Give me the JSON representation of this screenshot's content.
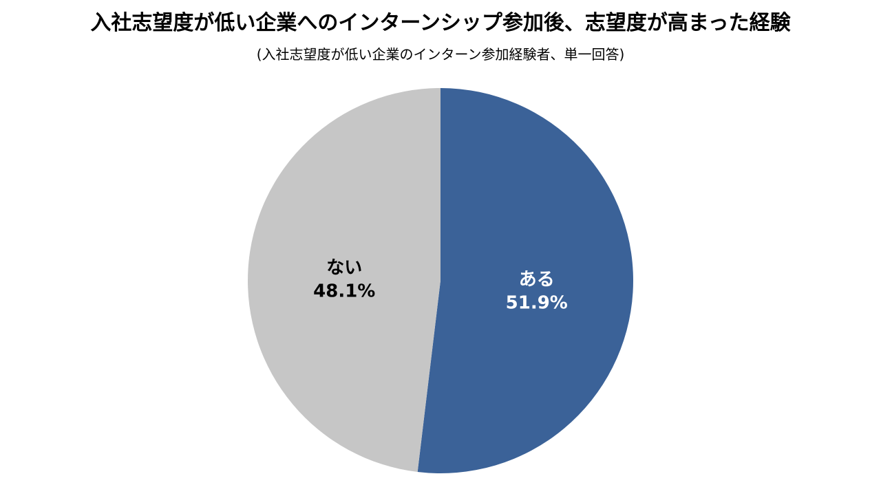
{
  "title": "入社志望度が低い企業へのインターンシップ参加後、志望度が高まった経験",
  "subtitle": "(入社志望度が低い企業のインターン参加経験者、単一回答)",
  "chart_data": {
    "type": "pie",
    "title": "入社志望度が低い企業へのインターンシップ参加後、志望度が高まった経験",
    "subtitle": "(入社志望度が低い企業のインターン参加経験者、単一回答)",
    "unit": "%",
    "slices": [
      {
        "label": "ある",
        "value": 51.9,
        "value_label": "51.9%",
        "color": "#3b6298",
        "text_color": "#ffffff"
      },
      {
        "label": "ない",
        "value": 48.1,
        "value_label": "48.1%",
        "color": "#c6c6c6",
        "text_color": "#000000"
      }
    ],
    "start_angle": "12 o'clock",
    "direction": "clockwise",
    "legend": "none"
  }
}
